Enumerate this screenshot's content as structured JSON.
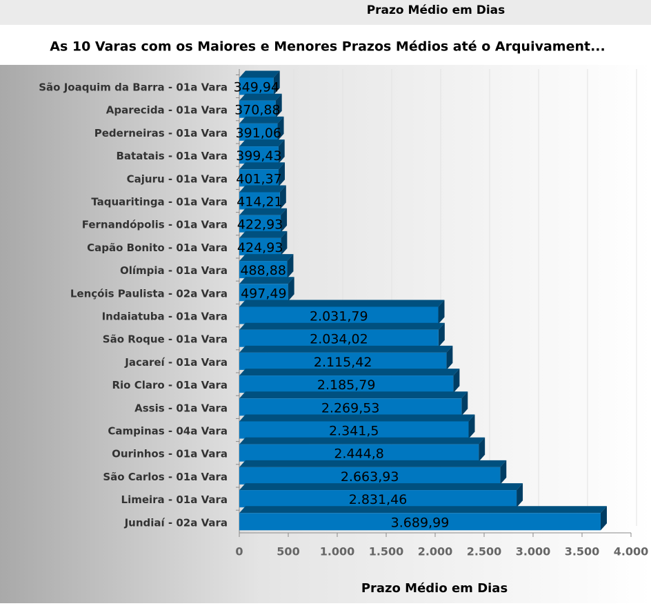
{
  "header": "Prazo Médio em Dias",
  "chart_data": {
    "type": "bar",
    "orientation": "horizontal",
    "title": "As 10 Varas com os Maiores e Menores Prazos Médios até o Arquivament...",
    "x_label": "Prazo Médio em Dias",
    "color": "#0077c0",
    "categories": [
      "São Joaquim da Barra - 01a Vara",
      "Aparecida - 01a Vara",
      "Pederneiras - 01a Vara",
      "Batatais - 01a Vara",
      "Cajuru - 01a Vara",
      "Taquaritinga - 01a Vara",
      "Fernandópolis - 01a Vara",
      "Capão Bonito - 01a Vara",
      "Olímpia - 01a Vara",
      "Lençóis Paulista - 02a Vara",
      "Indaiatuba - 01a Vara",
      "São Roque - 01a Vara",
      "Jacareí - 01a Vara",
      "Rio Claro - 01a Vara",
      "Assis - 01a Vara",
      "Campinas - 04a Vara",
      "Ourinhos - 01a Vara",
      "São Carlos - 01a Vara",
      "Limeira - 01a Vara",
      "Jundiaí - 02a Vara"
    ],
    "values": [
      349.94,
      370.88,
      391.06,
      399.43,
      401.37,
      414.21,
      422.93,
      424.93,
      488.88,
      497.49,
      2031.79,
      2034.02,
      2115.42,
      2185.79,
      2269.53,
      2341.5,
      2444.8,
      2663.93,
      2831.46,
      3689.99
    ],
    "value_labels": [
      "349,94",
      "370,88",
      "391,06",
      "399,43",
      "401,37",
      "414,21",
      "422,93",
      "424,93",
      "488,88",
      "497,49",
      "2.031,79",
      "2.034,02",
      "2.115,42",
      "2.185,79",
      "2.269,53",
      "2.341,5",
      "2.444,8",
      "2.663,93",
      "2.831,46",
      "3.689,99"
    ],
    "xlim": [
      0,
      4000
    ],
    "xticks": [
      0,
      500,
      {
        "value": 1000,
        "label": "1.000"
      },
      {
        "value": 1500,
        "label": "1.500"
      },
      {
        "value": 2000,
        "label": "2.000"
      },
      {
        "value": 2500,
        "label": "2.500"
      },
      {
        "value": 3000,
        "label": "3.000"
      },
      {
        "value": 3500,
        "label": "3.500"
      },
      {
        "value": 4000,
        "label": "4.000"
      }
    ],
    "grid": true
  }
}
